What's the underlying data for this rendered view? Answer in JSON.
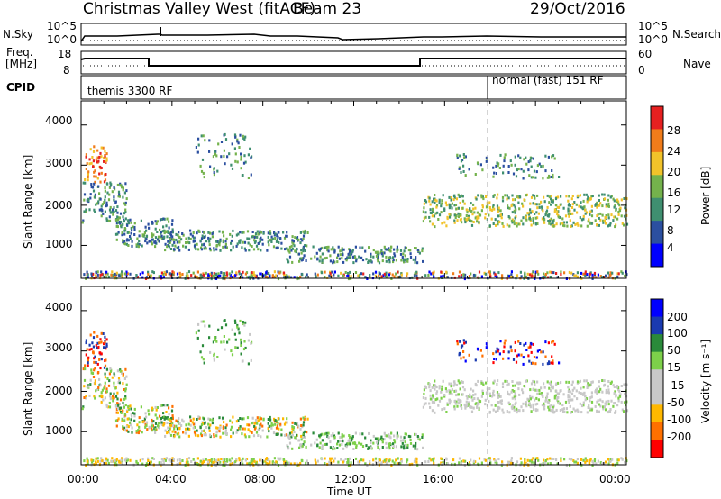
{
  "header": {
    "title": "Christmas Valley West (fitACF)",
    "beam": "Beam 23",
    "date": "29/Oct/2016"
  },
  "left_labels": {
    "nsky": "N.Sky",
    "freq_line1": "Freq.",
    "freq_line2": "[MHz]",
    "cpid": "CPID"
  },
  "right_labels": {
    "nsearch": "N.Search",
    "nave": "Nave"
  },
  "noise_panel": {
    "left_ticks": [
      "10^5",
      "10^0"
    ],
    "right_ticks": [
      "10^5",
      "10^0"
    ]
  },
  "freq_panel": {
    "left_ticks": [
      "18",
      "8"
    ],
    "right_ticks": [
      "60",
      "0"
    ]
  },
  "cpid_panel": {
    "segments": [
      "themis 3300 RF",
      "normal (fast) 151 RF"
    ]
  },
  "chart_data": [
    {
      "type": "heatmap",
      "ylabel": "Slant Range [km]",
      "ylim": [
        180,
        4600
      ],
      "yticks": [
        "4000",
        "3000",
        "2000",
        "1000"
      ],
      "colorbar": {
        "label": "Power [dB]",
        "ticks": [
          "28",
          "24",
          "20",
          "16",
          "12",
          "8",
          "4"
        ],
        "range": [
          0,
          30
        ],
        "colors": [
          "#0000ff",
          "#2b4fa0",
          "#3f8f70",
          "#74b24c",
          "#f2c32a",
          "#f07c1a",
          "#e62020"
        ]
      }
    },
    {
      "type": "heatmap",
      "ylabel": "Slant Range [km]",
      "ylim": [
        180,
        4600
      ],
      "yticks": [
        "4000",
        "3000",
        "2000",
        "1000"
      ],
      "xlabel": "Time UT",
      "xticks": [
        "00:00",
        "04:00",
        "08:00",
        "12:00",
        "16:00",
        "20:00",
        "00:00"
      ],
      "xlim": [
        0,
        24
      ],
      "colorbar": {
        "label": "Velocity [m s⁻¹]",
        "ticks": [
          "200",
          "100",
          "50",
          "15",
          "-15",
          "-50",
          "-100",
          "-200"
        ],
        "colors": [
          "#ff0000",
          "#ff7000",
          "#ffb800",
          "#c8c8c8",
          "#c8c8c8",
          "#7dd04a",
          "#2a8a3a",
          "#1a3ab0",
          "#0000ff"
        ]
      }
    }
  ]
}
